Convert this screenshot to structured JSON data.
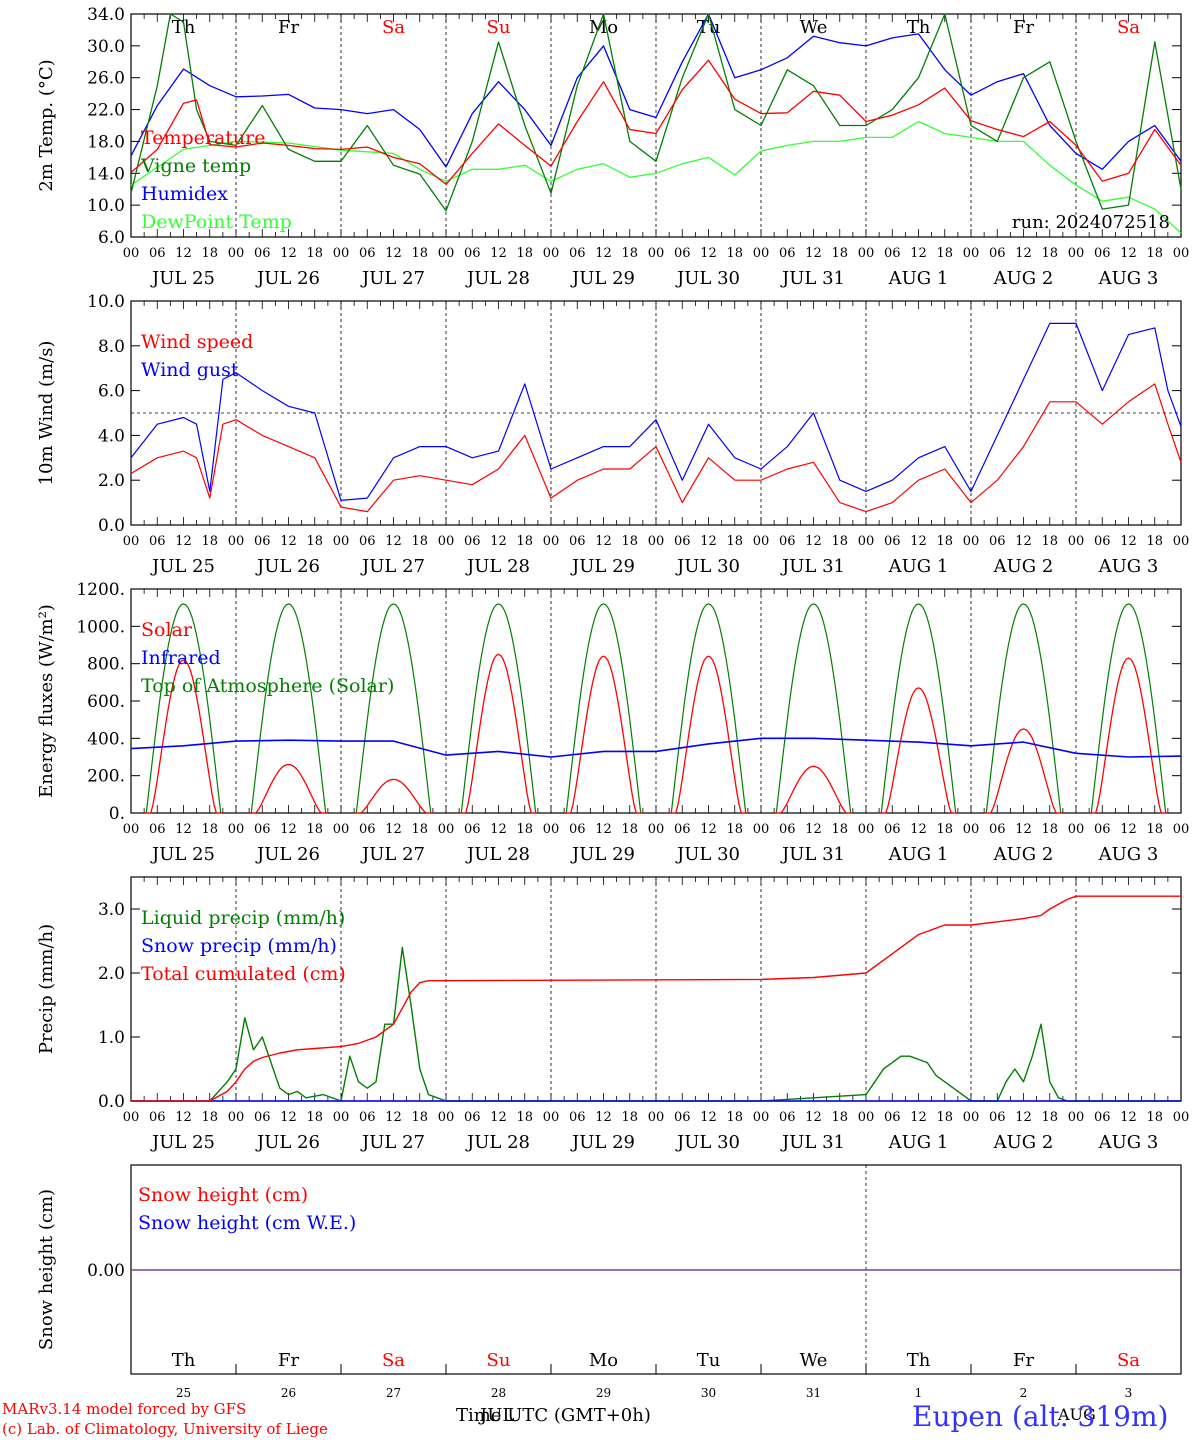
{
  "colors": {
    "red": "#ff0000",
    "green": "#008000",
    "blue": "#0000ff",
    "lightgreen": "#33ff33",
    "purple": "#7f3f9f",
    "axis": "#000000"
  },
  "days": {
    "weekday_labels": [
      "Th",
      "Fr",
      "Sa",
      "Su",
      "Mo",
      "Tu",
      "We",
      "Th",
      "Fr",
      "Sa"
    ],
    "weekday_weekend": [
      false,
      false,
      true,
      true,
      false,
      false,
      false,
      false,
      false,
      true
    ],
    "date_labels": [
      "JUL 25",
      "JUL 26",
      "JUL 27",
      "JUL 28",
      "JUL 29",
      "JUL 30",
      "JUL 31",
      "AUG  1",
      "AUG  2",
      "AUG  3"
    ],
    "hour_labels": [
      "00",
      "06",
      "12",
      "18"
    ],
    "day_numbers": [
      "25",
      "26",
      "27",
      "28",
      "29",
      "30",
      "31",
      "1",
      "2",
      "3"
    ]
  },
  "chart_data": [
    {
      "type": "line",
      "id": "temp",
      "ylabel": "2m Temp. (°C)",
      "ylim": [
        6.0,
        34.0
      ],
      "yticks": [
        "6.0",
        "10.0",
        "14.0",
        "18.0",
        "22.0",
        "26.0",
        "30.0",
        "34.0"
      ],
      "annotation": "run: 2024072518",
      "x_unit": "hours since 2024-07-25 00 UTC",
      "series": [
        {
          "name": "Temperature",
          "color": "red",
          "x": [
            0,
            6,
            12,
            15,
            18,
            24,
            30,
            36,
            42,
            48,
            54,
            60,
            66,
            72,
            78,
            84,
            90,
            96,
            102,
            108,
            114,
            120,
            126,
            132,
            138,
            144,
            150,
            156,
            162,
            168,
            174,
            180,
            186,
            192,
            198,
            204,
            210,
            216,
            222,
            228,
            234,
            240
          ],
          "values": [
            14.1,
            17,
            22.8,
            23.2,
            17.6,
            17.3,
            17.8,
            17.5,
            17.1,
            17.0,
            17.3,
            16.0,
            15.2,
            12.6,
            16.5,
            20.2,
            17.5,
            14.9,
            20.5,
            25.5,
            19.5,
            19.0,
            24.5,
            28.2,
            23.3,
            21.5,
            21.6,
            24.3,
            23.8,
            20.5,
            21.3,
            22.6,
            24.7,
            20.6,
            19.5,
            18.6,
            20.5,
            17.5,
            13.0,
            14.0,
            19.5,
            15.0
          ]
        },
        {
          "name": "Vigne temp",
          "color": "green",
          "x": [
            0,
            6,
            9,
            12,
            15,
            18,
            24,
            30,
            36,
            42,
            48,
            54,
            60,
            66,
            72,
            78,
            84,
            90,
            96,
            102,
            108,
            114,
            120,
            126,
            132,
            138,
            144,
            150,
            156,
            162,
            168,
            174,
            180,
            186,
            192,
            198,
            204,
            210,
            216,
            222,
            228,
            234,
            240
          ],
          "values": [
            11.5,
            25,
            34,
            33,
            22,
            18,
            17.5,
            22.5,
            17,
            15.5,
            15.5,
            20,
            15,
            13.9,
            9.3,
            18,
            30.5,
            20,
            11.5,
            25,
            34,
            18,
            15.5,
            26,
            34,
            22,
            20,
            27,
            25,
            20,
            20,
            22,
            26,
            34,
            20,
            18,
            26,
            28,
            18,
            9.5,
            10,
            30.5,
            12
          ]
        },
        {
          "name": "Humidex",
          "color": "blue",
          "x": [
            0,
            6,
            12,
            18,
            24,
            30,
            36,
            42,
            48,
            54,
            60,
            66,
            72,
            78,
            84,
            90,
            96,
            102,
            108,
            114,
            120,
            126,
            132,
            138,
            144,
            150,
            156,
            162,
            168,
            174,
            180,
            186,
            192,
            198,
            204,
            210,
            216,
            222,
            228,
            234,
            240
          ],
          "values": [
            16.2,
            22.5,
            27.1,
            25,
            23.6,
            23.7,
            23.9,
            22.2,
            22.0,
            21.5,
            22,
            19.5,
            14.8,
            21.5,
            25.5,
            22,
            17.5,
            26,
            30,
            22,
            21,
            28,
            34,
            26,
            27,
            28.5,
            31.2,
            30.4,
            30,
            31,
            31.5,
            27,
            23.8,
            25.5,
            26.5,
            20,
            16.5,
            14.5,
            18,
            20,
            15.5
          ]
        },
        {
          "name": "DewPoint Temp",
          "color": "lightgreen",
          "x": [
            0,
            12,
            24,
            36,
            48,
            60,
            66,
            72,
            78,
            84,
            90,
            96,
            102,
            108,
            114,
            120,
            126,
            132,
            138,
            144,
            150,
            156,
            162,
            168,
            174,
            180,
            186,
            192,
            198,
            204,
            210,
            216,
            222,
            228,
            234,
            240
          ],
          "values": [
            12.5,
            17,
            18.0,
            17.8,
            16.9,
            16.5,
            14.5,
            13.0,
            14.5,
            14.5,
            15,
            13.0,
            14.5,
            15.2,
            13.5,
            14.0,
            15.2,
            16.0,
            13.8,
            16.8,
            17.5,
            18,
            18.0,
            18.5,
            18.5,
            20.5,
            19,
            18.5,
            18,
            18,
            15.0,
            12.5,
            10.5,
            11.0,
            9.5,
            6.5
          ]
        }
      ]
    },
    {
      "type": "line",
      "id": "wind",
      "ylabel": "10m Wind (m/s)",
      "ylim": [
        0.0,
        10.0
      ],
      "yticks": [
        "0.0",
        "2.0",
        "4.0",
        "6.0",
        "8.0",
        "10.0"
      ],
      "refline": 5.0,
      "x_unit": "hours since 2024-07-25 00 UTC",
      "series": [
        {
          "name": "Wind speed",
          "color": "red",
          "x": [
            0,
            6,
            12,
            15,
            18,
            21,
            24,
            30,
            36,
            42,
            48,
            54,
            60,
            66,
            72,
            78,
            84,
            90,
            96,
            102,
            108,
            114,
            120,
            126,
            132,
            138,
            144,
            150,
            156,
            162,
            168,
            174,
            180,
            186,
            192,
            198,
            204,
            210,
            216,
            222,
            228,
            234,
            237,
            240
          ],
          "values": [
            2.3,
            3,
            3.3,
            3.0,
            1.2,
            4.5,
            4.7,
            4,
            3.5,
            3,
            0.8,
            0.6,
            2,
            2.2,
            2.0,
            1.8,
            2.5,
            4.0,
            1.2,
            2.0,
            2.5,
            2.5,
            3.5,
            1.0,
            3.0,
            2.0,
            2.0,
            2.5,
            2.8,
            1.0,
            0.6,
            1.0,
            2.0,
            2.5,
            1.0,
            2.0,
            3.5,
            5.5,
            5.5,
            4.5,
            5.5,
            6.3,
            4.5,
            2.8
          ]
        },
        {
          "name": "Wind gust",
          "color": "blue",
          "x": [
            0,
            6,
            12,
            15,
            18,
            21,
            24,
            30,
            36,
            42,
            48,
            54,
            60,
            66,
            72,
            78,
            84,
            90,
            96,
            102,
            108,
            114,
            120,
            126,
            132,
            138,
            144,
            150,
            156,
            162,
            168,
            174,
            180,
            186,
            192,
            198,
            204,
            210,
            216,
            222,
            228,
            234,
            237,
            240
          ],
          "values": [
            3.0,
            4.5,
            4.8,
            4.5,
            1.5,
            6.5,
            6.8,
            6.0,
            5.3,
            5.0,
            1.1,
            1.2,
            3.0,
            3.5,
            3.5,
            3.0,
            3.3,
            6.3,
            2.5,
            3.0,
            3.5,
            3.5,
            4.7,
            2.0,
            4.5,
            3.0,
            2.5,
            3.5,
            5.0,
            2.0,
            1.5,
            2.0,
            3.0,
            3.5,
            1.5,
            4.0,
            6.5,
            9.0,
            9.0,
            6.0,
            8.5,
            8.8,
            6.0,
            4.4
          ]
        }
      ]
    },
    {
      "type": "line",
      "id": "energy",
      "ylabel": "Energy fluxes (W/m²)",
      "ylim": [
        0,
        1200
      ],
      "yticks": [
        "0.",
        "200.",
        "400.",
        "600.",
        "800.",
        "1000.",
        "1200."
      ],
      "x_unit": "hours since 2024-07-25 00 UTC",
      "series": [
        {
          "name": "Solar",
          "color": "red",
          "peaks": [
            820,
            260,
            180,
            850,
            840,
            840,
            250,
            670,
            450,
            830
          ]
        },
        {
          "name": "Infrared",
          "color": "blue",
          "x": [
            0,
            12,
            24,
            36,
            48,
            60,
            72,
            84,
            96,
            108,
            120,
            132,
            144,
            156,
            168,
            180,
            192,
            204,
            216,
            228,
            240
          ],
          "values": [
            345,
            360,
            385,
            390,
            385,
            385,
            310,
            330,
            300,
            330,
            330,
            370,
            400,
            400,
            390,
            380,
            360,
            380,
            320,
            300,
            305
          ]
        },
        {
          "name": "Top of Atmosphere (Solar)",
          "color": "green",
          "peak": 1120
        }
      ]
    },
    {
      "type": "line",
      "id": "precip",
      "ylabel": "Precip (mm/h)",
      "ylim": [
        0.0,
        3.5
      ],
      "yticks": [
        "0.0",
        "1.0",
        "2.0",
        "3.0"
      ],
      "x_unit": "hours since 2024-07-25 00 UTC",
      "series": [
        {
          "name": "Liquid precip (mm/h)",
          "color": "green",
          "x": [
            0,
            18,
            22,
            24,
            26,
            28,
            30,
            32,
            34,
            36,
            38,
            40,
            44,
            48,
            50,
            52,
            54,
            56,
            58,
            60,
            62,
            64,
            66,
            68,
            70,
            72,
            144,
            156,
            168,
            170,
            172,
            174,
            176,
            178,
            180,
            182,
            184,
            186,
            188,
            190,
            192,
            194,
            196,
            198,
            200,
            202,
            204,
            206,
            208,
            210,
            212,
            214,
            216,
            240
          ],
          "values": [
            0,
            0,
            0.3,
            0.5,
            1.3,
            0.8,
            1.0,
            0.6,
            0.2,
            0.1,
            0.15,
            0.05,
            0.1,
            0,
            0.7,
            0.3,
            0.2,
            0.3,
            1.2,
            1.2,
            2.4,
            1.5,
            0.5,
            0.1,
            0.05,
            0,
            0,
            0.05,
            0.1,
            0.3,
            0.5,
            0.6,
            0.7,
            0.7,
            0.65,
            0.6,
            0.4,
            0.3,
            0.2,
            0.1,
            0,
            0,
            0,
            0,
            0.3,
            0.5,
            0.3,
            0.7,
            1.2,
            0.3,
            0.05,
            0,
            0,
            0
          ]
        },
        {
          "name": "Snow precip (mm/h)",
          "color": "blue",
          "x": [
            0,
            240
          ],
          "values": [
            0,
            0
          ]
        },
        {
          "name": "Total cumulated (cm)",
          "color": "red",
          "x": [
            0,
            18,
            22,
            24,
            26,
            28,
            30,
            34,
            38,
            42,
            48,
            52,
            56,
            60,
            62,
            64,
            66,
            68,
            72,
            144,
            156,
            168,
            174,
            180,
            186,
            192,
            198,
            204,
            208,
            210,
            214,
            216,
            240
          ],
          "values": [
            0,
            0,
            0.15,
            0.3,
            0.5,
            0.62,
            0.68,
            0.75,
            0.8,
            0.82,
            0.85,
            0.9,
            1.0,
            1.2,
            1.45,
            1.7,
            1.85,
            1.88,
            1.88,
            1.9,
            1.93,
            2.0,
            2.3,
            2.6,
            2.75,
            2.75,
            2.8,
            2.85,
            2.9,
            3.0,
            3.15,
            3.2,
            3.2
          ]
        }
      ]
    },
    {
      "type": "line",
      "id": "snow",
      "ylabel": "Snow height (cm)",
      "ytick": "0.00",
      "series": [
        {
          "name": "Snow height (cm)",
          "color": "red",
          "x": [
            0,
            240
          ],
          "values": [
            0,
            0
          ]
        },
        {
          "name": "Snow height (cm W.E.)",
          "color": "blue",
          "x": [
            0,
            240
          ],
          "values": [
            0,
            0
          ]
        }
      ]
    }
  ],
  "footer": {
    "model_line": "MARv3.14 model forced by GFS",
    "lab_line": "(c) Lab. of Climatology, University of Liege",
    "xlabel": "Time UTC (GMT+0h)",
    "xlabel_overlap": "JUL",
    "month_right": "AUG",
    "station": "Eupen (alt. 319m)"
  }
}
